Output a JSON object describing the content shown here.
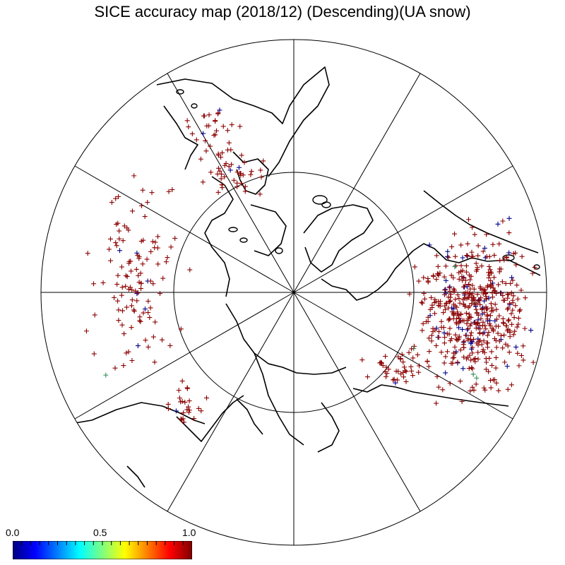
{
  "title": "SICE accuracy map (2018/12) (Descending)(UA snow)",
  "colorbar": {
    "min_label": "0.0",
    "mid_label": "0.5",
    "max_label": "1.0",
    "colors": [
      "#00007f",
      "#0000ff",
      "#007fff",
      "#00ffff",
      "#7fff7f",
      "#ffff00",
      "#ff7f00",
      "#ff0000",
      "#7f0000"
    ]
  },
  "map": {
    "projection": "north-polar-stereographic",
    "meridian_spacing_deg": 30,
    "inner_latitude_circle": true,
    "marker": "+",
    "marker_colors": {
      "high_accuracy": "#8b0000",
      "low_accuracy": "#00008b",
      "mid_accuracy": "#2e8b57"
    },
    "point_clusters": [
      {
        "region": "north-america-west",
        "dominant_value": 1.0,
        "count": 120
      },
      {
        "region": "greenland-coast",
        "dominant_value": 1.0,
        "count": 40
      },
      {
        "region": "eurasia-west",
        "dominant_value": 1.0,
        "count": 520,
        "low_value_count": 60
      },
      {
        "region": "eurasia-east-coast",
        "dominant_value": 1.0,
        "count": 30
      },
      {
        "region": "alaska",
        "dominant_value": 1.0,
        "count": 25
      },
      {
        "region": "scandinavia-north",
        "dominant_value": 1.0,
        "count": 40
      }
    ]
  }
}
